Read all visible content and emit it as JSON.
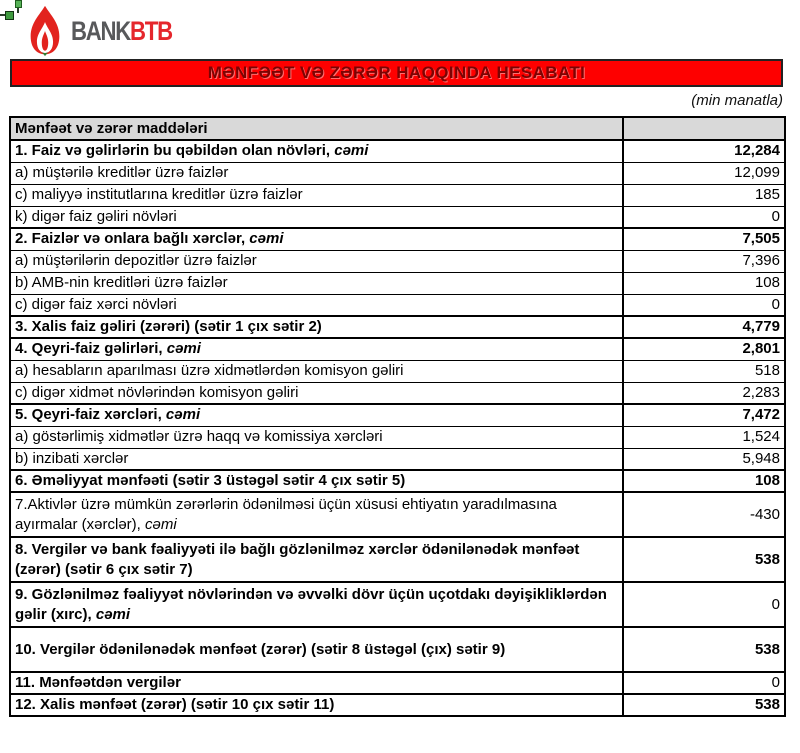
{
  "logo": {
    "brand_gray": "BANK",
    "brand_red": "BTB",
    "flame_red": "#e2231e",
    "flame_green": "#2e7d32",
    "text_gray": "#58595b",
    "text_red": "#e5262c"
  },
  "title_banner": {
    "text": "MƏNFƏƏT VƏ ZƏRƏR HAQQINDA HESABATI",
    "background": "#fe0000",
    "text_color": "#7c0303"
  },
  "units_note": "(min manatla)",
  "table": {
    "header": {
      "items_label": "Mənfəət və zərər maddələri",
      "value_label": "",
      "header_bg": "#d9d9d9"
    },
    "rows": [
      {
        "label": "1. Faiz və gəlirlərin bu qəbildən olan növləri, ",
        "label_italic": "cəmi",
        "value": "12,284",
        "bold": true,
        "section": true
      },
      {
        "label": "a) müştərilə kreditlər üzrə faizlər",
        "value": "12,099"
      },
      {
        "label": "c) maliyyə institutlarına kreditlər üzrə faizlər",
        "value": "185"
      },
      {
        "label": "k) digər faiz gəliri növləri",
        "value": "0"
      },
      {
        "label": "2. Faizlər və onlara bağlı xərclər, ",
        "label_italic": "cəmi",
        "value": "7,505",
        "bold": true,
        "section": true
      },
      {
        "label": "a) müştərilərin depozitlər üzrə faizlər",
        "value": "7,396"
      },
      {
        "label": "b) AMB-nin kreditləri üzrə faizlər",
        "value": "108"
      },
      {
        "label": "c) digər faiz xərci növləri",
        "value": "0"
      },
      {
        "label": "3. Xalis faiz gəliri (zərəri) (sətir 1 çıx sətir 2)",
        "value": "4,779",
        "bold": true,
        "section": true
      },
      {
        "label": "4. Qeyri-faiz gəlirləri, ",
        "label_italic": "cəmi",
        "value": "2,801",
        "bold": true,
        "section": true
      },
      {
        "label": "a) hesabların aparılması üzrə xidmətlərdən komisyon gəliri",
        "value": "518"
      },
      {
        "label": "c) digər xidmət növlərindən komisyon gəliri",
        "value": "2,283"
      },
      {
        "label": "5. Qeyri-faiz xərcləri, ",
        "label_italic": "cəmi",
        "value": "7,472",
        "bold": true,
        "section": true
      },
      {
        "label": "a) göstərlimiş xidmətlər üzrə haqq və komissiya xərcləri",
        "value": "1,524"
      },
      {
        "label": "b) inzibati xərclər",
        "value": "5,948"
      },
      {
        "label": "6. Əməliyyat mənfəəti (sətir 3 üstəgəl sətir 4 çıx sətir 5)",
        "value": "108",
        "bold": true,
        "section": true
      },
      {
        "label": "7.Aktivlər üzrə mümkün zərərlərin ödənilməsi üçün xüsusi ehtiyatın yaradılmasına ayırmalar (xərclər), ",
        "label_italic": "cəmi",
        "value": "-430",
        "bold": false,
        "section": true,
        "two_line": true
      },
      {
        "label": "8. Vergilər və bank fəaliyyəti ilə bağlı gözlənilməz xərclər ödənilənədək mənfəət (zərər) (sətir 6 çıx sətir 7)",
        "value": "538",
        "bold": true,
        "section": true,
        "two_line": true
      },
      {
        "label": "9. Gözlənilməz fəaliyyət növlərindən və əvvəlki dövr üçün uçotdakı dəyişikliklərdən gəlir (xırc), ",
        "label_italic": "cəmi",
        "value": "0",
        "bold": true,
        "value_bold": false,
        "section": true,
        "two_line": true
      },
      {
        "label": "10. Vergilər ödənilənədək mənfəət (zərər) (sətir 8 üstəgəl (çıx) sətir 9)",
        "value": "538",
        "bold": true,
        "section": true,
        "two_line": true
      },
      {
        "label": "11. Mənfəətdən vergilər",
        "value": "0",
        "bold": true,
        "value_bold": false,
        "section": true
      },
      {
        "label": "12. Xalis mənfəət (zərər) (sətir 10 çıx sətir 11)",
        "value": "538",
        "bold": true,
        "section": true
      }
    ]
  }
}
